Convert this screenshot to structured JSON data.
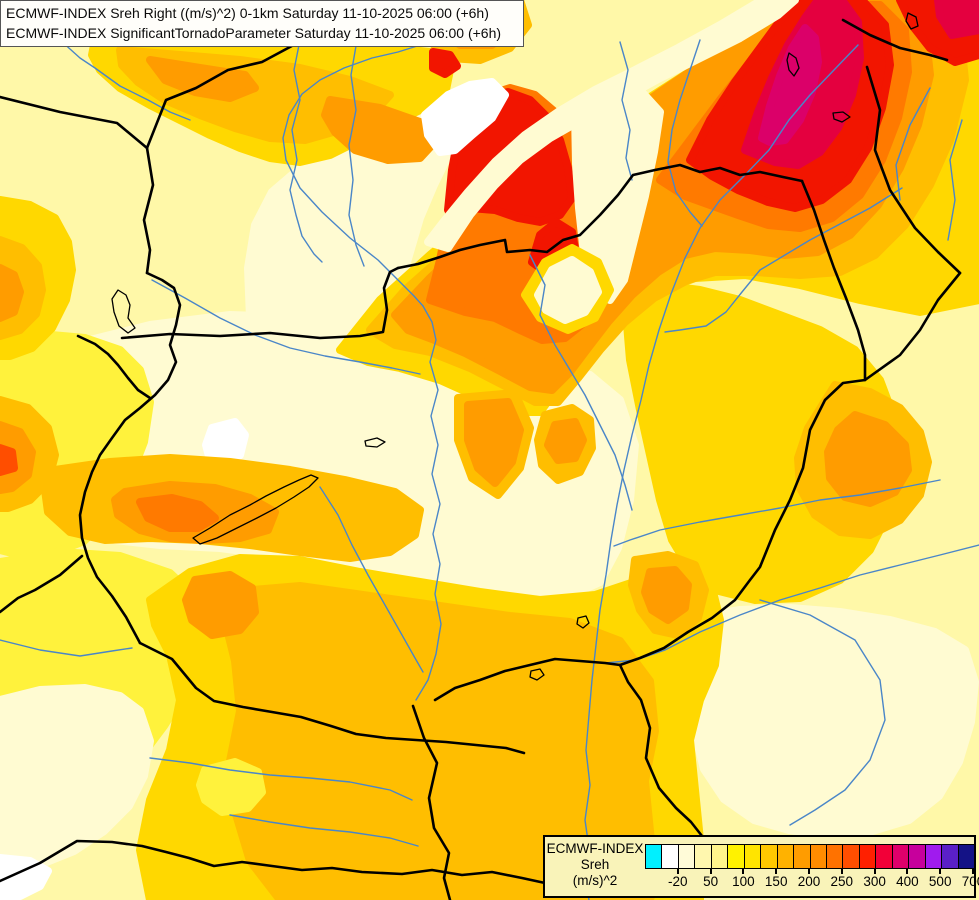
{
  "header": {
    "line1": "ECMWF-INDEX Sreh Right ((m/s)^2) 0-1km Saturday 11-10-2025 06:00 (+6h)",
    "line2": "ECMWF-INDEX SignificantTornadoParameter Saturday 11-10-2025 06:00 (+6h)"
  },
  "legend": {
    "title_line1": "ECMWF-INDEX",
    "title_line2": "Sreh",
    "title_line3": "(m/s)^2",
    "tick_labels": [
      "-20",
      "50",
      "100",
      "150",
      "200",
      "250",
      "300",
      "400",
      "500",
      "700"
    ],
    "cell_colors": [
      "#00F0FF",
      "#FFFFFF",
      "#FFFBD8",
      "#FFF7AE",
      "#FFF48C",
      "#FFF200",
      "#FFE400",
      "#FFC800",
      "#FFB200",
      "#FF9C00",
      "#FF8C00",
      "#FF7200",
      "#FF4E00",
      "#FF2000",
      "#F20038",
      "#DF006B",
      "#C7009C",
      "#A01BEE",
      "#5A20C8",
      "#141286"
    ],
    "box_background": "#F9F3B9"
  },
  "map": {
    "description": "Filled contour map of storm-relative helicity (Sreh) over Hungary and surrounding countries",
    "palette": {
      "base": "#FFF8A8",
      "cream": "#FFFBD2",
      "white": "#FFFFFF",
      "yellow": "#FFF23C",
      "gold": "#FFD800",
      "amber": "#FFBE00",
      "orange": "#FF9C00",
      "deep": "#FF7A00",
      "redor": "#FF4E00",
      "red": "#F21500",
      "crimson": "#E4003F",
      "magenta": "#DB0069",
      "river": "#4A86C8",
      "border": "#000000"
    },
    "features": {
      "borders": "country borders",
      "rivers": "Danube, Tisza and tributaries",
      "lakes": "Balaton, Neusiedl, Velence"
    }
  }
}
